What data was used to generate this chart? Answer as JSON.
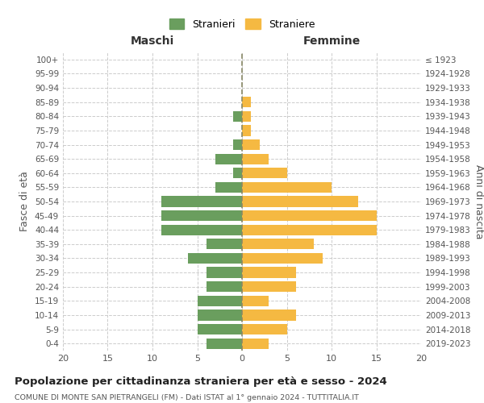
{
  "age_groups": [
    "0-4",
    "5-9",
    "10-14",
    "15-19",
    "20-24",
    "25-29",
    "30-34",
    "35-39",
    "40-44",
    "45-49",
    "50-54",
    "55-59",
    "60-64",
    "65-69",
    "70-74",
    "75-79",
    "80-84",
    "85-89",
    "90-94",
    "95-99",
    "100+"
  ],
  "birth_years": [
    "2019-2023",
    "2014-2018",
    "2009-2013",
    "2004-2008",
    "1999-2003",
    "1994-1998",
    "1989-1993",
    "1984-1988",
    "1979-1983",
    "1974-1978",
    "1969-1973",
    "1964-1968",
    "1959-1963",
    "1954-1958",
    "1949-1953",
    "1944-1948",
    "1939-1943",
    "1934-1938",
    "1929-1933",
    "1924-1928",
    "≤ 1923"
  ],
  "males": [
    4,
    5,
    5,
    5,
    4,
    4,
    6,
    4,
    9,
    9,
    9,
    3,
    1,
    3,
    1,
    0,
    1,
    0,
    0,
    0,
    0
  ],
  "females": [
    3,
    5,
    6,
    3,
    6,
    6,
    9,
    8,
    15,
    15,
    13,
    10,
    5,
    3,
    2,
    1,
    1,
    1,
    0,
    0,
    0
  ],
  "male_color": "#6a9e5e",
  "female_color": "#f5b942",
  "background_color": "#ffffff",
  "grid_color": "#cccccc",
  "title": "Popolazione per cittadinanza straniera per età e sesso - 2024",
  "subtitle": "COMUNE DI MONTE SAN PIETRANGELI (FM) - Dati ISTAT al 1° gennaio 2024 - TUTTITALIA.IT",
  "xlabel_left": "Maschi",
  "xlabel_right": "Femmine",
  "ylabel_left": "Fasce di età",
  "ylabel_right": "Anni di nascita",
  "legend_male": "Stranieri",
  "legend_female": "Straniere",
  "xlim": 20
}
